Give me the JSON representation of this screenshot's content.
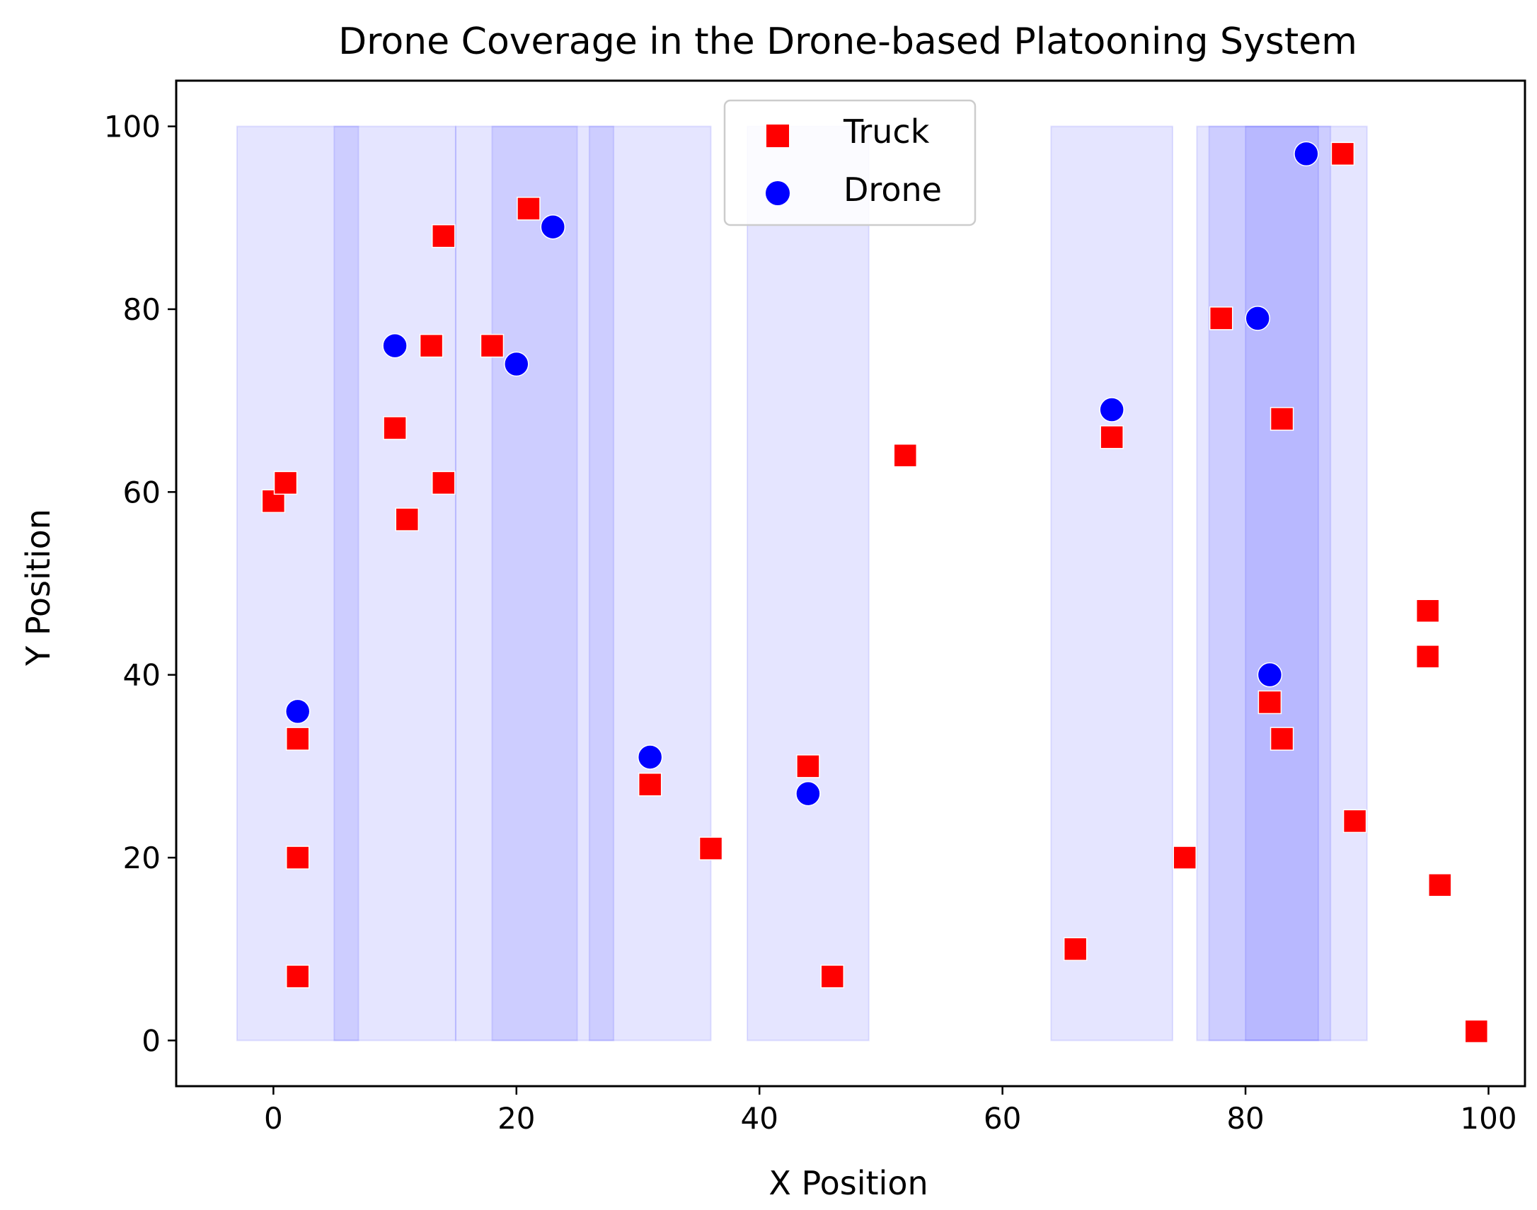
{
  "chart_data": {
    "type": "scatter",
    "title": "Drone Coverage in the Drone-based Platooning System",
    "xlabel": "X Position",
    "ylabel": "Y Position",
    "xlim": [
      -8,
      103
    ],
    "ylim": [
      -5,
      105
    ],
    "xticks": [
      0,
      20,
      40,
      60,
      80,
      100
    ],
    "yticks": [
      0,
      20,
      40,
      60,
      80,
      100
    ],
    "grid": false,
    "legend_position": "top-center",
    "coverage_radius": 5,
    "coverage_color": "#0000ff",
    "series": [
      {
        "name": "Truck",
        "marker": "square",
        "color": "#ff0000",
        "points": [
          [
            0,
            59
          ],
          [
            1,
            61
          ],
          [
            2,
            33
          ],
          [
            2,
            20
          ],
          [
            2,
            7
          ],
          [
            10,
            67
          ],
          [
            11,
            57
          ],
          [
            13,
            76
          ],
          [
            14,
            88
          ],
          [
            14,
            61
          ],
          [
            18,
            76
          ],
          [
            21,
            91
          ],
          [
            31,
            28
          ],
          [
            36,
            21
          ],
          [
            44,
            30
          ],
          [
            46,
            7
          ],
          [
            52,
            64
          ],
          [
            66,
            10
          ],
          [
            69,
            66
          ],
          [
            75,
            20
          ],
          [
            78,
            79
          ],
          [
            82,
            37
          ],
          [
            83,
            68
          ],
          [
            83,
            33
          ],
          [
            88,
            97
          ],
          [
            89,
            24
          ],
          [
            95,
            47
          ],
          [
            95,
            42
          ],
          [
            96,
            17
          ],
          [
            99,
            1
          ]
        ]
      },
      {
        "name": "Drone",
        "marker": "circle",
        "color": "#0000ff",
        "points": [
          [
            2,
            36
          ],
          [
            10,
            76
          ],
          [
            20,
            74
          ],
          [
            23,
            89
          ],
          [
            31,
            31
          ],
          [
            44,
            27
          ],
          [
            69,
            69
          ],
          [
            81,
            79
          ],
          [
            82,
            40
          ],
          [
            85,
            97
          ]
        ]
      }
    ],
    "coverage_bands": [
      {
        "x_min": -3,
        "x_max": 7,
        "y_min": 0,
        "y_max": 100
      },
      {
        "x_min": 5,
        "x_max": 15,
        "y_min": 0,
        "y_max": 100
      },
      {
        "x_min": 15,
        "x_max": 25,
        "y_min": 0,
        "y_max": 100
      },
      {
        "x_min": 18,
        "x_max": 28,
        "y_min": 0,
        "y_max": 100
      },
      {
        "x_min": 26,
        "x_max": 36,
        "y_min": 0,
        "y_max": 100
      },
      {
        "x_min": 39,
        "x_max": 49,
        "y_min": 0,
        "y_max": 100
      },
      {
        "x_min": 64,
        "x_max": 74,
        "y_min": 0,
        "y_max": 100
      },
      {
        "x_min": 76,
        "x_max": 86,
        "y_min": 0,
        "y_max": 100
      },
      {
        "x_min": 77,
        "x_max": 87,
        "y_min": 0,
        "y_max": 100
      },
      {
        "x_min": 80,
        "x_max": 90,
        "y_min": 0,
        "y_max": 100
      }
    ]
  }
}
